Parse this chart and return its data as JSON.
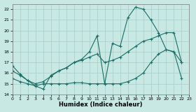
{
  "xlabel": "Humidex (Indice chaleur)",
  "xlim": [
    0,
    23
  ],
  "ylim": [
    14,
    22.5
  ],
  "yticks": [
    14,
    15,
    16,
    17,
    18,
    19,
    20,
    21,
    22
  ],
  "xticks": [
    0,
    1,
    2,
    3,
    4,
    5,
    6,
    7,
    8,
    9,
    10,
    11,
    12,
    13,
    14,
    15,
    16,
    17,
    18,
    19,
    20,
    21,
    22,
    23
  ],
  "bg_color": "#c8e8e4",
  "grid_color": "#a8ccc8",
  "line_color": "#1a6e65",
  "s1_x": [
    0,
    1,
    2,
    3,
    4,
    5,
    6,
    7,
    8,
    9,
    10,
    11,
    12,
    13,
    14,
    15,
    16,
    17,
    18,
    19,
    20,
    21,
    22
  ],
  "s1_y": [
    16.7,
    15.9,
    15.3,
    14.8,
    14.5,
    15.8,
    16.2,
    16.5,
    17.0,
    17.3,
    18.0,
    19.5,
    15.0,
    18.8,
    18.5,
    21.2,
    22.2,
    22.0,
    21.0,
    19.8,
    18.2,
    18.0,
    17.0
  ],
  "s2_x": [
    0,
    1,
    2,
    3,
    4,
    5,
    6,
    7,
    8,
    9,
    10,
    11,
    12,
    13,
    14,
    15,
    16,
    17,
    18,
    19,
    20,
    21,
    22
  ],
  "s2_y": [
    15.5,
    15.2,
    15.0,
    14.8,
    15.0,
    15.0,
    15.0,
    15.0,
    15.1,
    15.1,
    15.0,
    15.0,
    15.0,
    15.0,
    15.0,
    15.2,
    15.5,
    16.0,
    17.0,
    17.8,
    18.2,
    18.0,
    15.5
  ],
  "s3_x": [
    0,
    1,
    2,
    3,
    4,
    5,
    6,
    7,
    8,
    9,
    10,
    11,
    12,
    13,
    14,
    15,
    16,
    17,
    18,
    19,
    20,
    21,
    22
  ],
  "s3_y": [
    16.2,
    15.8,
    15.3,
    15.0,
    15.2,
    15.7,
    16.2,
    16.5,
    17.0,
    17.2,
    17.5,
    17.8,
    17.0,
    17.2,
    17.5,
    18.0,
    18.5,
    19.0,
    19.2,
    19.5,
    19.8,
    19.8,
    17.0
  ]
}
